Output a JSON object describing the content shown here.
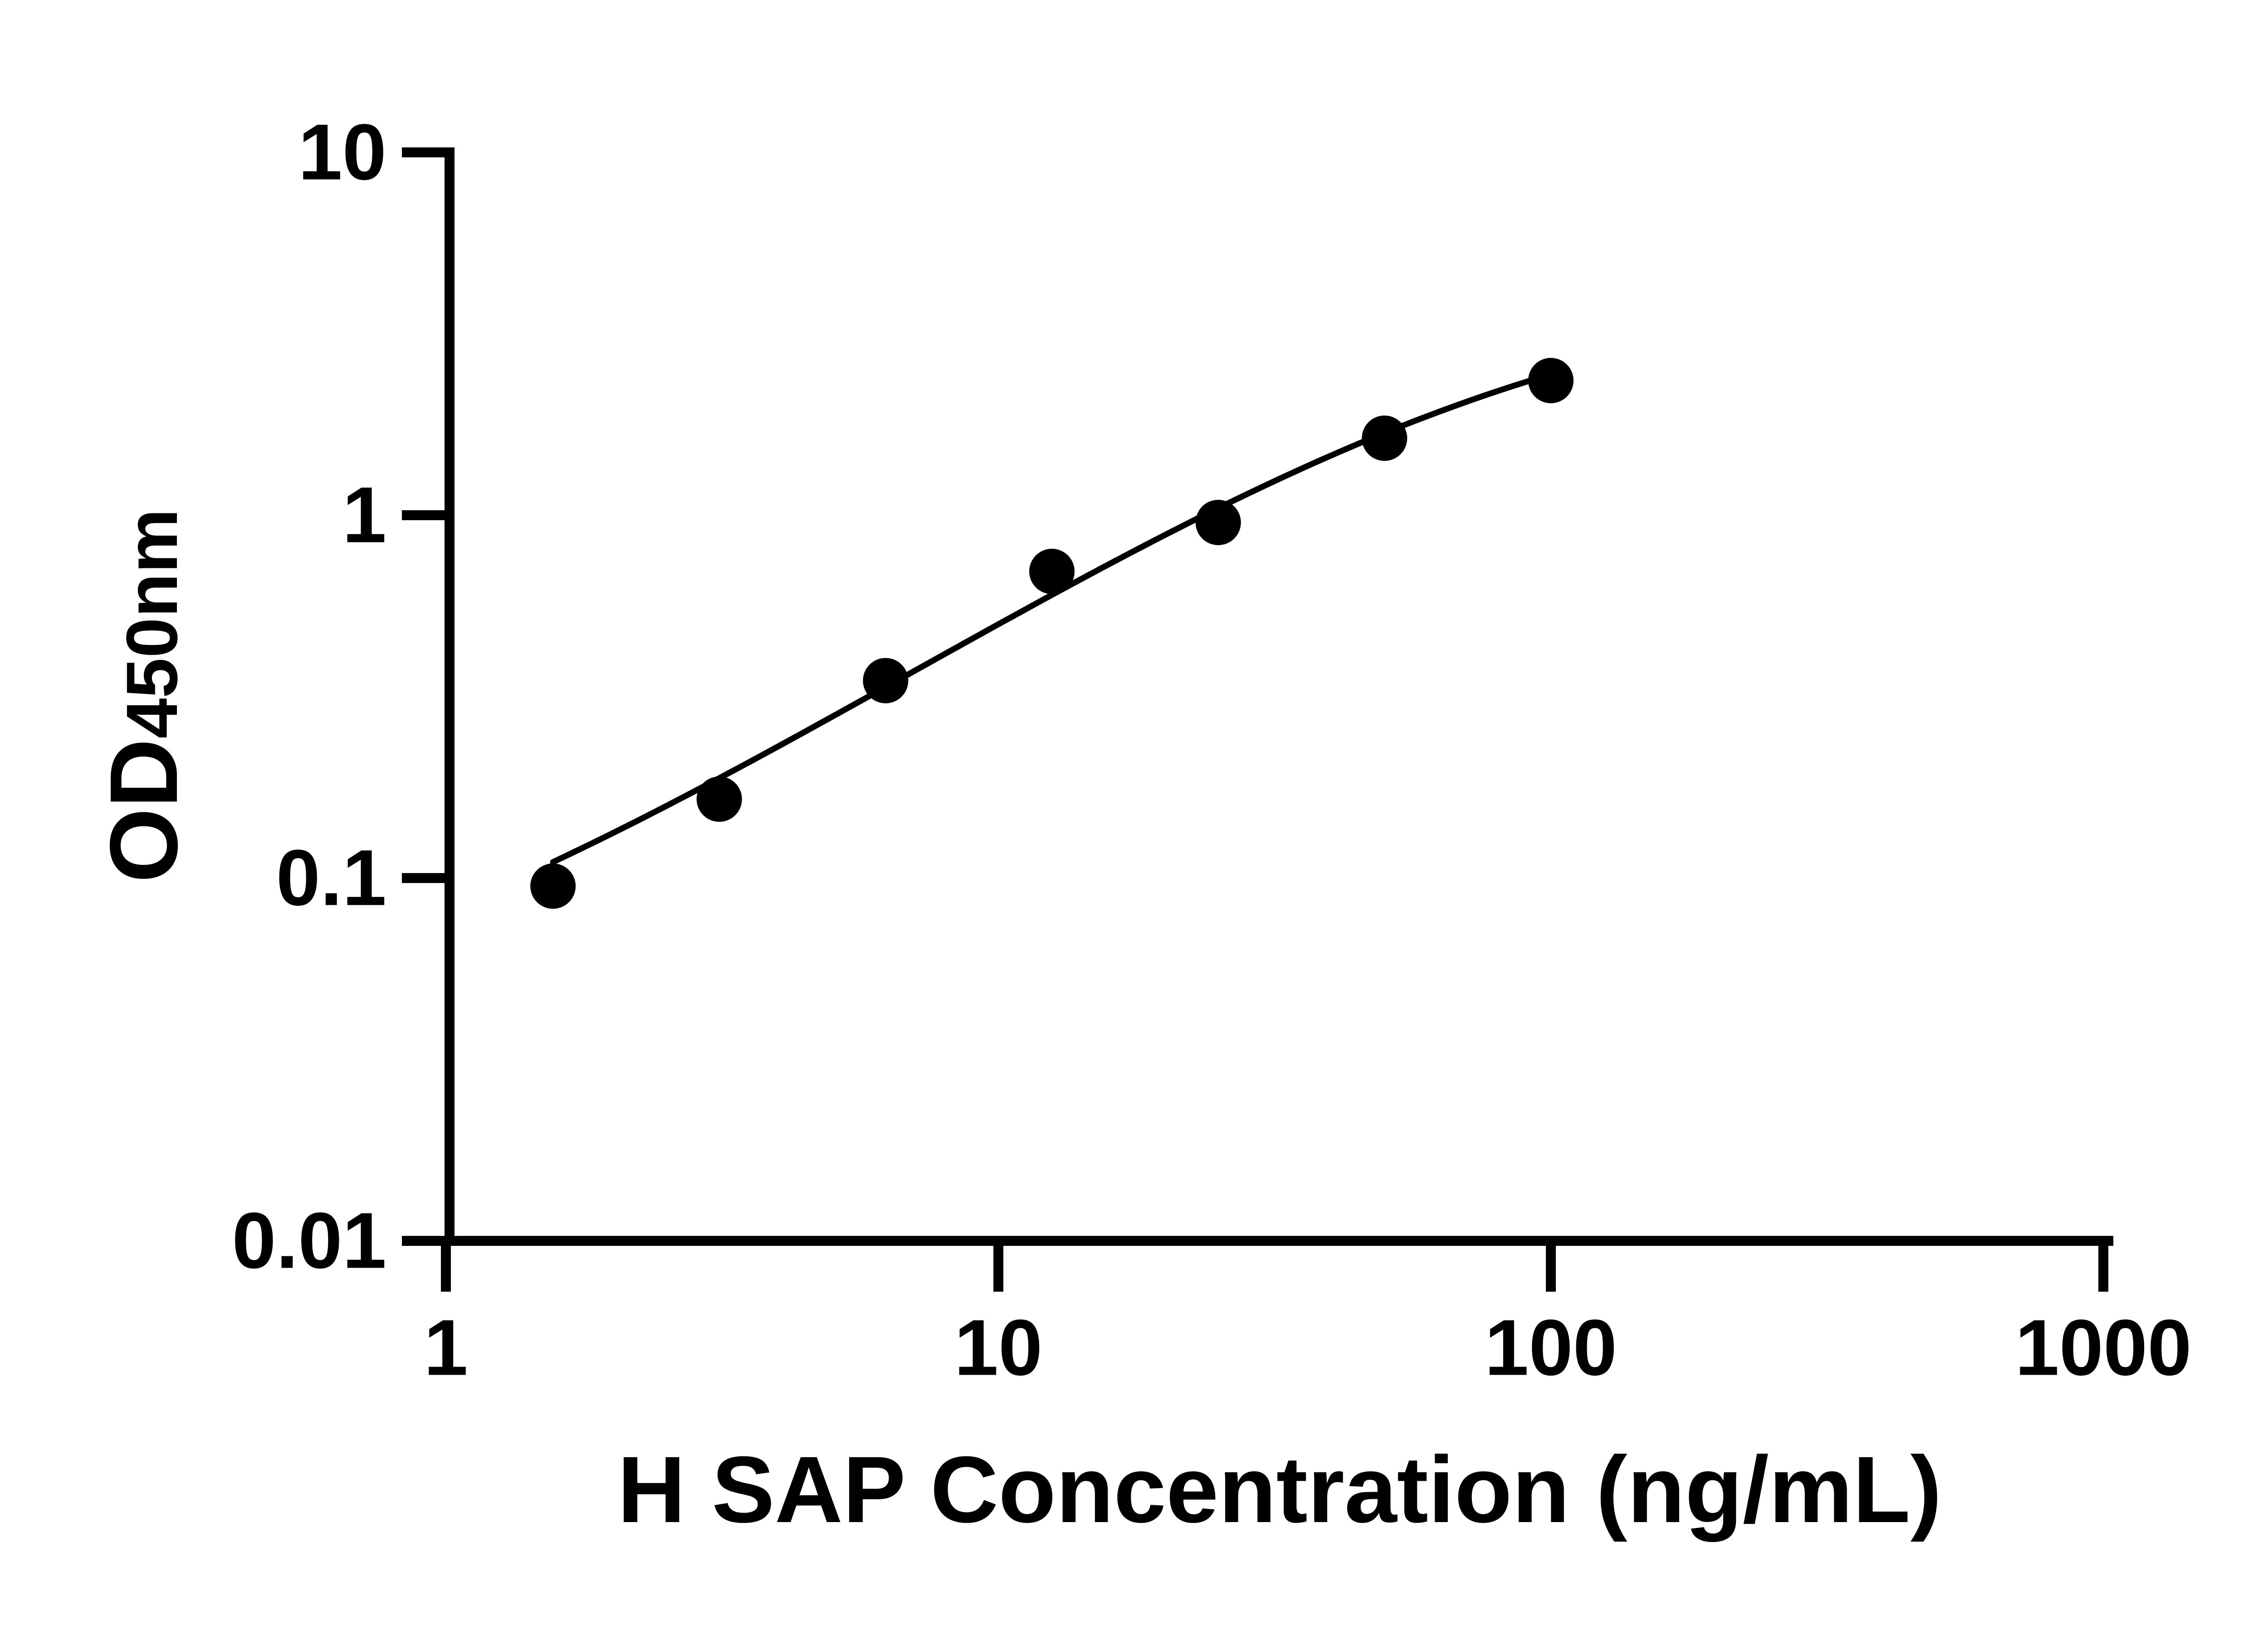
{
  "page": {
    "background_color": "#ffffff",
    "foreground_color": "#000000"
  },
  "chart_data": {
    "type": "scatter",
    "title": "",
    "xlabel": "H SAP Concentration (ng/mL)",
    "ylabel": {
      "main": "OD",
      "sub": "450nm"
    },
    "x_scale": "log10",
    "y_scale": "log10",
    "xlim": [
      1,
      1000
    ],
    "ylim": [
      0.01,
      10
    ],
    "grid": false,
    "x_ticks": [
      {
        "value": 1,
        "label": "1"
      },
      {
        "value": 10,
        "label": "10"
      },
      {
        "value": 100,
        "label": "100"
      },
      {
        "value": 1000,
        "label": "1000"
      }
    ],
    "y_ticks": [
      {
        "value": 10,
        "label": "10"
      },
      {
        "value": 1,
        "label": "1"
      },
      {
        "value": 0.1,
        "label": "0.1"
      },
      {
        "value": 0.01,
        "label": "0.01"
      }
    ],
    "series": [
      {
        "marker": "filled-circle",
        "color": "#000000",
        "points": [
          {
            "x": 1.5625,
            "y": 0.095
          },
          {
            "x": 3.125,
            "y": 0.165
          },
          {
            "x": 6.25,
            "y": 0.35
          },
          {
            "x": 12.5,
            "y": 0.7
          },
          {
            "x": 25,
            "y": 0.955
          },
          {
            "x": 50,
            "y": 1.63
          },
          {
            "x": 100,
            "y": 2.35
          }
        ]
      }
    ],
    "fit_curve": {
      "model": "4PL",
      "bottom": 0.03,
      "top": 4.5,
      "ec50": 85,
      "hill": 1.0,
      "x_start": 1.5625,
      "x_end": 100,
      "color": "#000000"
    }
  }
}
